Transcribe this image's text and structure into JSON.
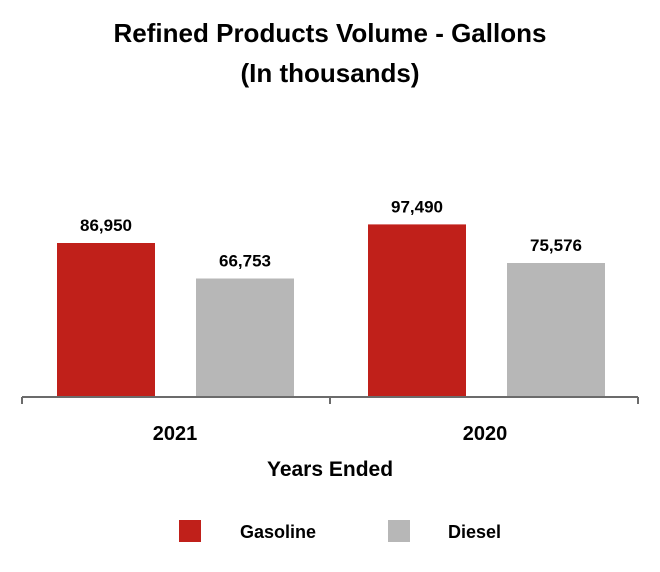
{
  "chart_data": {
    "type": "bar",
    "title_lines": [
      "Refined Products Volume - Gallons",
      "(In thousands)"
    ],
    "categories": [
      "2021",
      "2020"
    ],
    "series": [
      {
        "name": "Gasoline",
        "color": "#c0201a",
        "values": [
          86950,
          97490
        ],
        "labels": [
          "86,950",
          "97,490"
        ]
      },
      {
        "name": "Diesel",
        "color": "#b7b7b7",
        "values": [
          66753,
          75576
        ],
        "labels": [
          "66,753",
          "75,576"
        ]
      }
    ],
    "xlabel": "Years Ended",
    "ylabel": "",
    "ylim": [
      0,
      100000
    ],
    "grid": false,
    "legend": "bottom"
  }
}
